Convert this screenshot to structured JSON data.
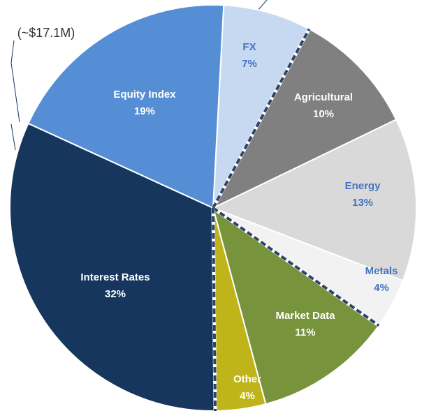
{
  "chart_data": {
    "type": "pie",
    "annotation": "(~$17.1M)",
    "categories": [
      "FX",
      "Agricultural",
      "Energy",
      "Metals",
      "Market Data",
      "Other",
      "Interest Rates",
      "Equity Index"
    ],
    "values": [
      7,
      10,
      13,
      4,
      11,
      4,
      32,
      19
    ],
    "value_labels": [
      "7%",
      "10%",
      "13%",
      "4%",
      "11%",
      "4%",
      "32%",
      "19%"
    ],
    "colors": [
      "#c6d9f1",
      "#808080",
      "#d9d9d9",
      "#f2f2f2",
      "#77933c",
      "#bfb51a",
      "#17365d",
      "#558ed5"
    ],
    "label_colors": [
      "#4472c4",
      "#ffffff",
      "#4472c4",
      "#4472c4",
      "#ffffff",
      "#ffffff",
      "#ffffff",
      "#ffffff"
    ]
  }
}
